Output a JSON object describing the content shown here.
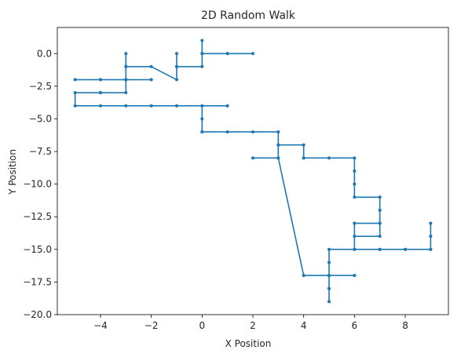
{
  "chart_data": {
    "type": "line",
    "title": "2D Random Walk",
    "xlabel": "X Position",
    "ylabel": "Y Position",
    "xlim": [
      -5.7,
      9.7
    ],
    "ylim": [
      -20.0,
      2.0
    ],
    "xticks": [
      -4,
      -2,
      0,
      2,
      4,
      6,
      8
    ],
    "yticks": [
      0.0,
      -2.5,
      -5.0,
      -7.5,
      -10.0,
      -12.5,
      -15.0,
      -17.5,
      -20.0
    ],
    "xtick_labels": [
      "−4",
      "−2",
      "0",
      "2",
      "4",
      "6",
      "8"
    ],
    "ytick_labels": [
      "0.0",
      "−2.5",
      "−5.0",
      "−7.5",
      "−10.0",
      "−12.5",
      "−15.0",
      "−17.5",
      "−20.0"
    ],
    "grid": false,
    "line_color": "#1f77b4",
    "series": [
      {
        "marker": "dot",
        "x": [
          0,
          0,
          0,
          1,
          2,
          1,
          0,
          0,
          -1,
          -1,
          -1,
          -1,
          -2,
          -3,
          -3,
          -3,
          -3,
          -2,
          -2,
          -3,
          -4,
          -5,
          -4,
          -3,
          -3,
          -4,
          -4,
          -5,
          -5,
          -4,
          -3,
          -2,
          -1,
          0,
          1,
          0,
          0,
          0,
          0,
          1,
          2,
          3,
          3,
          3,
          3,
          4,
          4,
          4,
          5,
          6,
          6,
          6,
          6,
          7,
          7,
          7,
          7,
          6,
          6,
          7,
          7,
          6,
          6,
          7,
          8,
          9,
          9,
          9,
          9,
          8,
          7,
          6,
          5,
          5,
          5,
          6,
          6,
          5,
          5,
          5,
          5,
          5,
          4,
          3,
          2
        ],
        "y": [
          0,
          1,
          0,
          0,
          0,
          0,
          0,
          -1,
          -1,
          0,
          -1,
          -2,
          -1,
          -1,
          0,
          -1,
          -2,
          -2,
          -2,
          -2,
          -2,
          -2,
          -2,
          -2,
          -3,
          -3,
          -3,
          -3,
          -4,
          -4,
          -4,
          -4,
          -4,
          -4,
          -4,
          -4,
          -5,
          -6,
          -6,
          -6,
          -6,
          -6,
          -7,
          -8,
          -7,
          -7,
          -8,
          -8,
          -8,
          -8,
          -9,
          -10,
          -11,
          -11,
          -12,
          -13,
          -14,
          -14,
          -13,
          -13,
          -13,
          -13,
          -15,
          -15,
          -15,
          -15,
          -14,
          -13,
          -15,
          -15,
          -15,
          -15,
          -15,
          -16,
          -17,
          -17,
          -17,
          -17,
          -18,
          -19,
          -18,
          -17,
          -17,
          -8,
          -8
        ]
      }
    ]
  }
}
